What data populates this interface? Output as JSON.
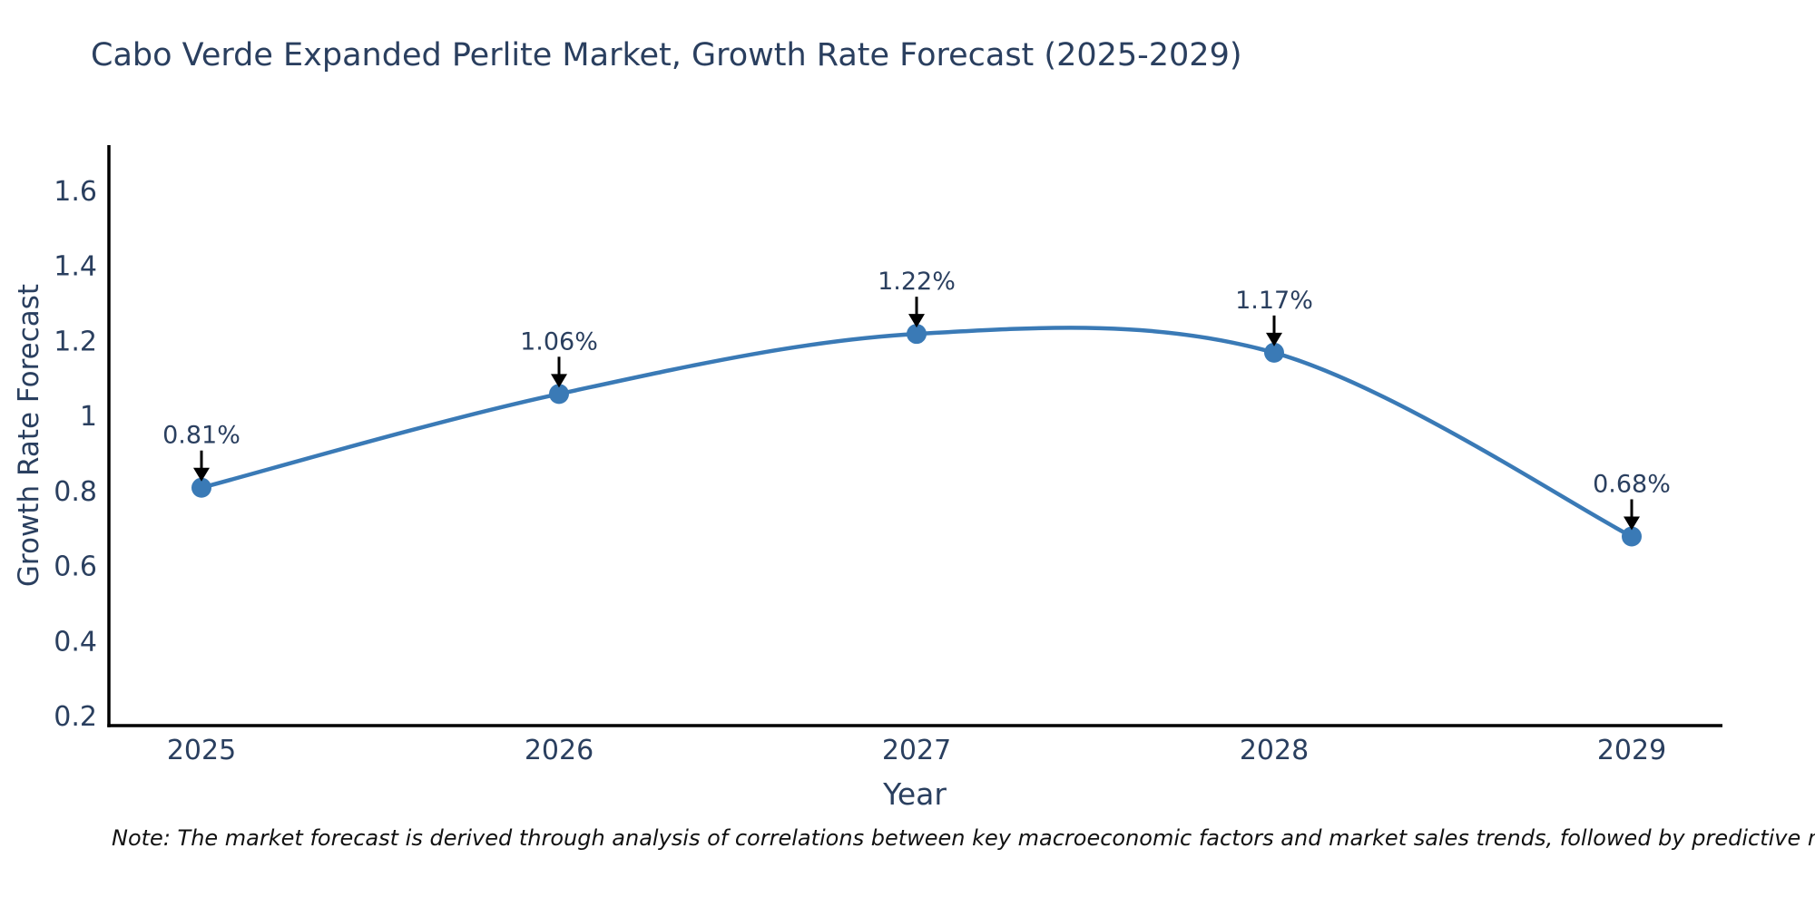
{
  "page": {
    "note": "Note: The market forecast is derived through analysis of correlations between key macroeconomic factors and market sales trends, followed by predictive modeling to project future sales"
  },
  "chart_data": {
    "type": "line",
    "title": "Cabo Verde Expanded Perlite Market, Growth Rate Forecast (2025-2029)",
    "x": [
      2025,
      2026,
      2027,
      2028,
      2029
    ],
    "series": [
      {
        "name": "Growth Rate Forecast",
        "values": [
          0.81,
          1.06,
          1.22,
          1.17,
          0.68
        ],
        "point_labels": [
          "0.81%",
          "1.06%",
          "1.22%",
          "1.17%",
          "0.68%"
        ]
      }
    ],
    "xlabel": "Year",
    "ylabel": "Growth Rate Forecast",
    "xtick_labels": [
      "2025",
      "2026",
      "2027",
      "2028",
      "2029"
    ],
    "ytick_values": [
      0.2,
      0.4,
      0.6,
      0.8,
      1.0,
      1.2,
      1.4,
      1.6
    ],
    "ytick_labels": [
      "0.2",
      "0.4",
      "0.6",
      "0.8",
      "1",
      "1.2",
      "1.4",
      "1.6"
    ],
    "ylim": [
      0.2,
      1.6
    ],
    "line_shape": "spline",
    "grid": false,
    "legend": "none",
    "colors": {
      "line": "#3a7ab6",
      "marker": "#3a7ab6",
      "axis": "#000000",
      "tick_text": "#2a3f5f",
      "title_text": "#2a3f5f",
      "annotation_text": "#2a3f5f",
      "arrow": "#000000",
      "background": "#ffffff"
    }
  }
}
